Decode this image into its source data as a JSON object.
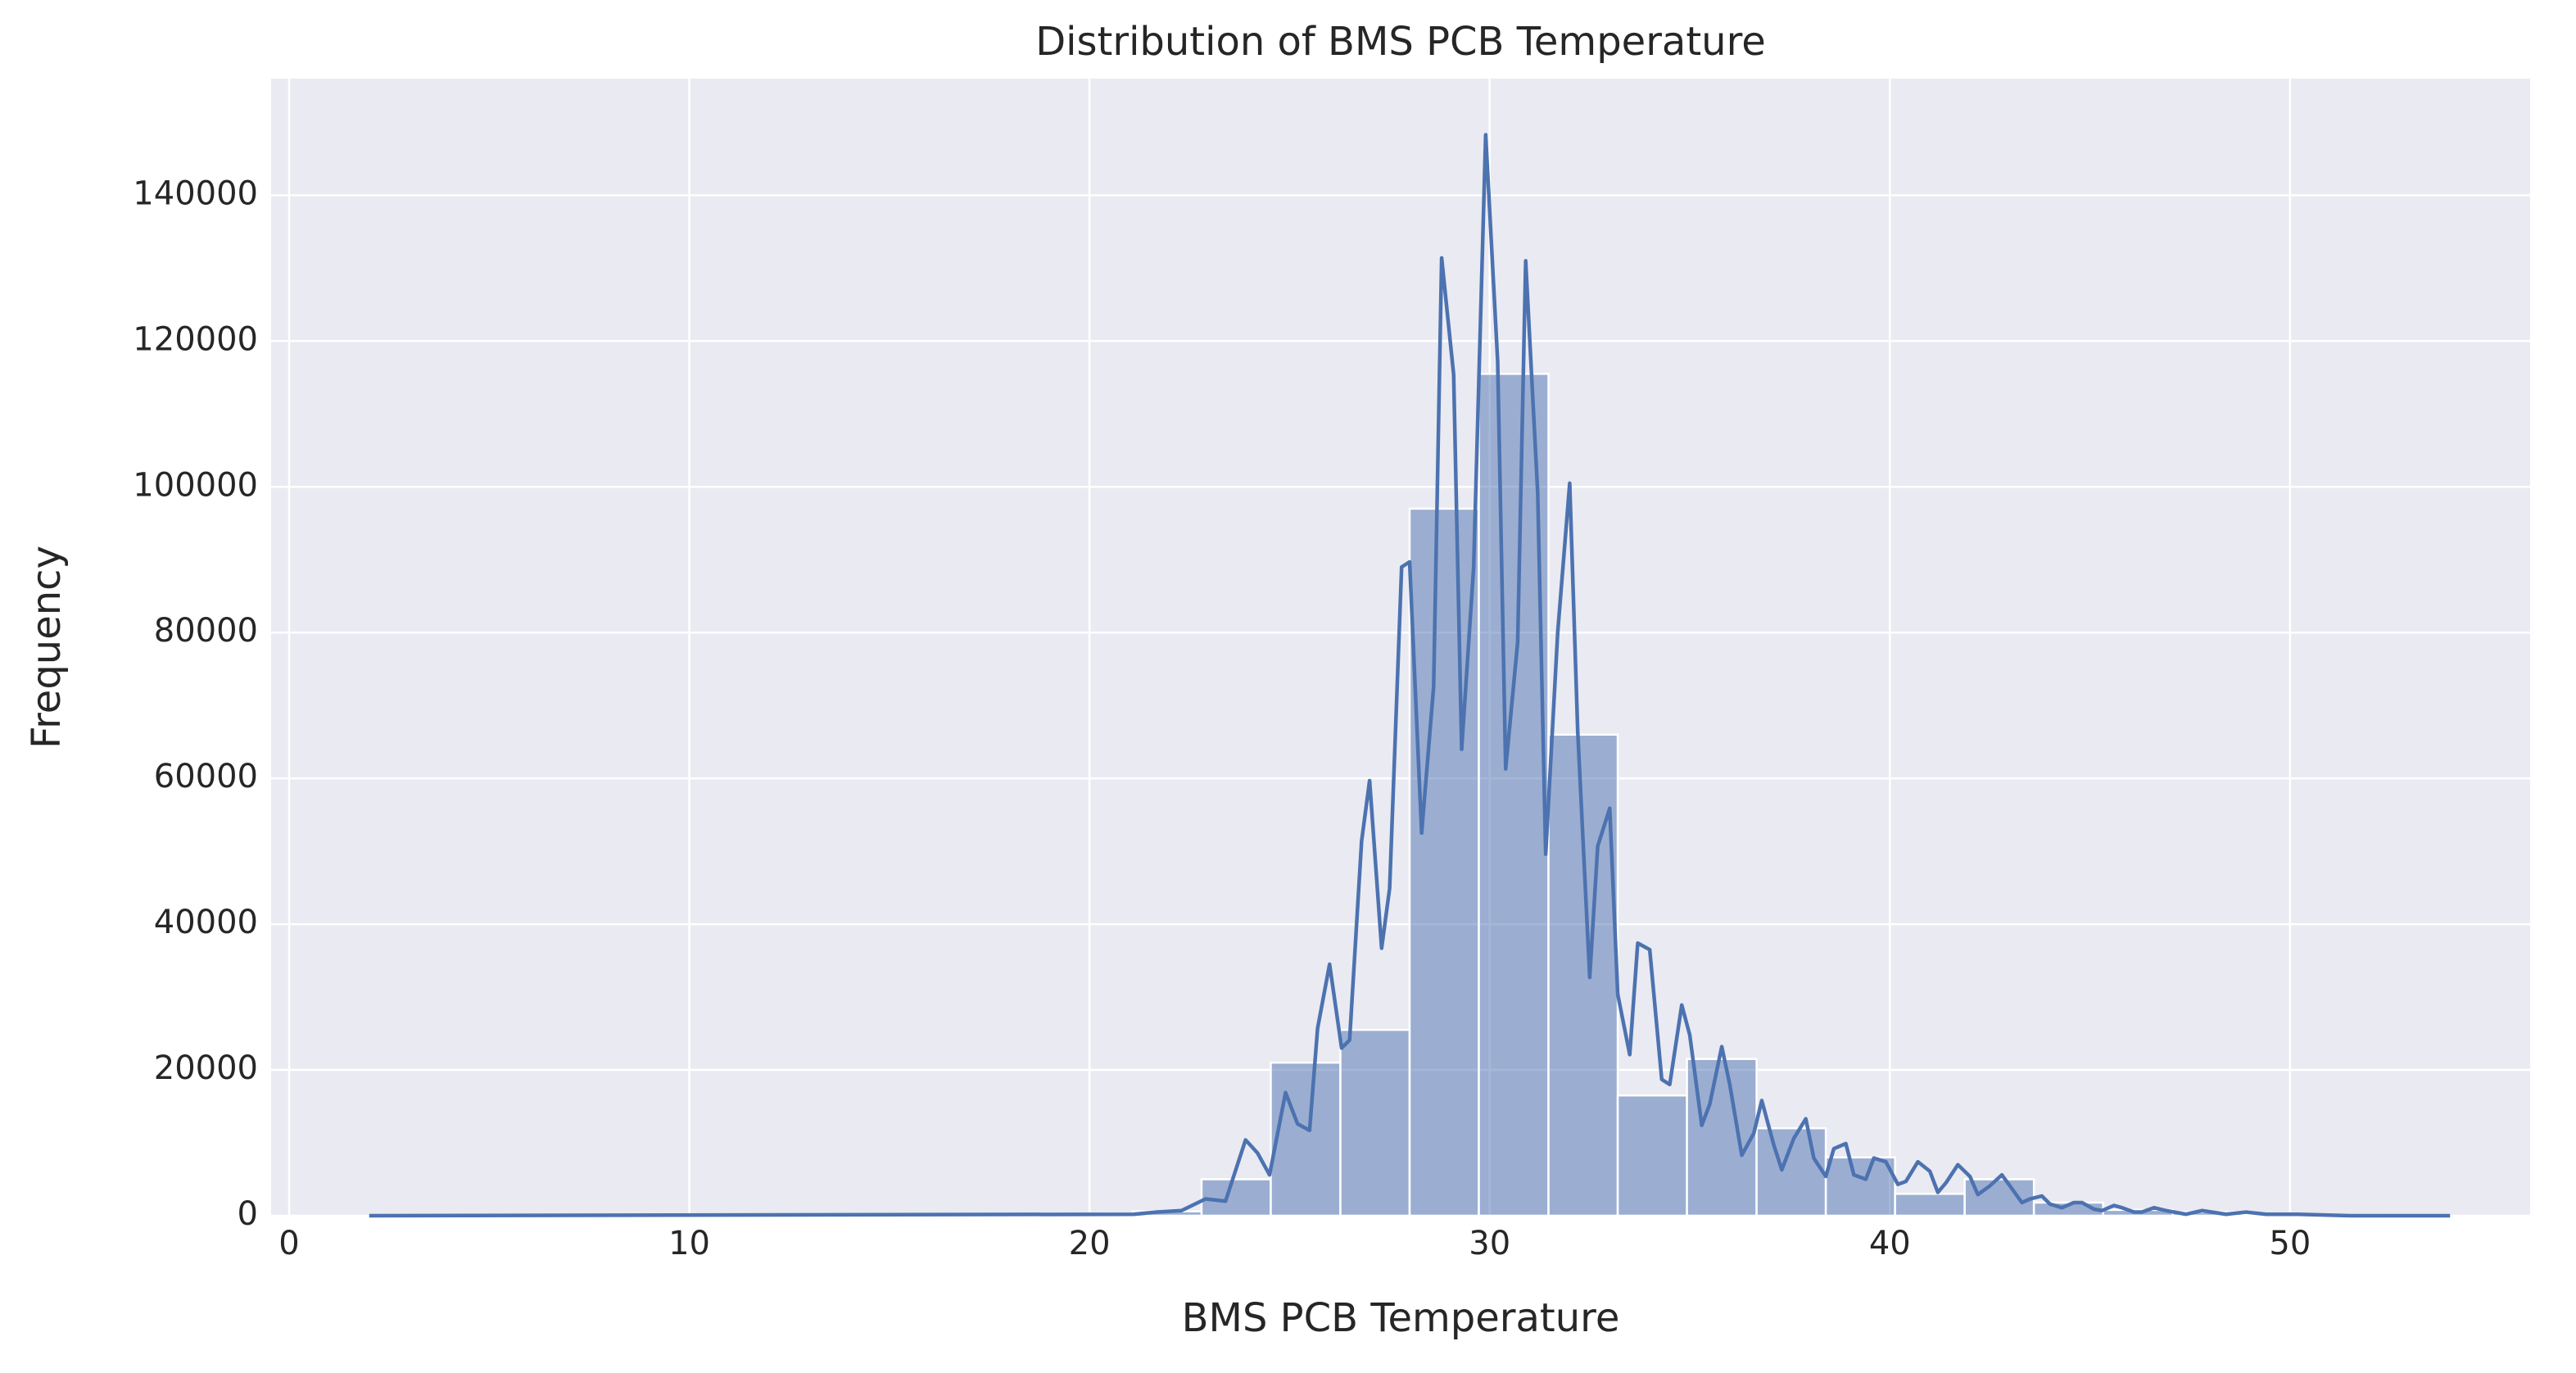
{
  "chart_data": {
    "type": "histogram",
    "title": "Distribution of BMS PCB Temperature",
    "xlabel": "BMS PCB Temperature",
    "ylabel": "Frequency",
    "bins": [
      2,
      3.73,
      5.47,
      7.2,
      8.93,
      10.67,
      12.4,
      14.13,
      15.87,
      17.6,
      19.33,
      21.07,
      22.8,
      24.53,
      26.27,
      28,
      29.73,
      31.47,
      33.2,
      34.93,
      36.67,
      38.4,
      40.13,
      41.87,
      43.6,
      45.33,
      47.07,
      48.8,
      50.53,
      52.27,
      54
    ],
    "counts": [
      100,
      0,
      0,
      0,
      0,
      0,
      0,
      0,
      0,
      0,
      100,
      600,
      5000,
      21000,
      25500,
      97000,
      115500,
      66000,
      16500,
      21500,
      12000,
      8000,
      3000,
      5000,
      1800,
      800,
      500,
      200,
      100,
      50
    ],
    "color": "#4c72b0",
    "line": {
      "x": [
        2.0,
        21.1,
        21.7,
        22.3,
        22.9,
        23.4,
        23.9,
        24.2,
        24.5,
        24.9,
        25.2,
        25.5,
        25.7,
        26.0,
        26.3,
        26.5,
        26.8,
        27.0,
        27.3,
        27.5,
        27.8,
        28.0,
        28.3,
        28.6,
        28.8,
        29.1,
        29.3,
        29.6,
        29.9,
        30.2,
        30.4,
        30.7,
        30.9,
        31.2,
        31.4,
        31.7,
        32.0,
        32.2,
        32.5,
        32.7,
        33.0,
        33.2,
        33.5,
        33.7,
        34.0,
        34.3,
        34.5,
        34.8,
        35.0,
        35.3,
        35.5,
        35.8,
        36.0,
        36.3,
        36.6,
        36.8,
        37.1,
        37.3,
        37.6,
        37.9,
        38.1,
        38.4,
        38.6,
        38.9,
        39.1,
        39.4,
        39.6,
        39.9,
        40.2,
        40.4,
        40.7,
        41.0,
        41.2,
        41.4,
        41.7,
        42.0,
        42.2,
        42.5,
        42.8,
        43.0,
        43.3,
        43.5,
        43.8,
        44.0,
        44.3,
        44.6,
        44.8,
        45.1,
        45.3,
        45.6,
        45.8,
        46.1,
        46.3,
        46.6,
        46.9,
        47.4,
        47.8,
        48.4,
        48.9,
        49.4,
        50.2,
        51.5,
        54.0
      ],
      "values": [
        0,
        200,
        500,
        700,
        2300,
        2000,
        10400,
        8600,
        5600,
        16900,
        12600,
        11700,
        25700,
        34500,
        23000,
        24100,
        51400,
        59700,
        36700,
        44900,
        89000,
        89700,
        52500,
        72600,
        131400,
        115400,
        64000,
        89000,
        148300,
        117200,
        61300,
        78700,
        131000,
        99200,
        49600,
        80000,
        100500,
        66500,
        32700,
        50700,
        55900,
        30400,
        22100,
        37400,
        36500,
        18700,
        18000,
        28900,
        24800,
        12400,
        15300,
        23200,
        18000,
        8300,
        11300,
        15800,
        9700,
        6300,
        10600,
        13300,
        7900,
        5400,
        9200,
        9900,
        5600,
        5000,
        7900,
        7400,
        4300,
        4700,
        7400,
        6100,
        3200,
        4500,
        7000,
        5400,
        2900,
        4100,
        5600,
        4100,
        1800,
        2300,
        2700,
        1600,
        1100,
        1800,
        1800,
        900,
        700,
        1400,
        1100,
        500,
        500,
        1100,
        700,
        200,
        700,
        200,
        500,
        200,
        200,
        0,
        0
      ]
    },
    "xlim": [
      -0.45,
      56.0
    ],
    "ylim": [
      0,
      156000
    ],
    "xticks": [
      0,
      10,
      20,
      30,
      40,
      50
    ],
    "yticks": [
      0,
      20000,
      40000,
      60000,
      80000,
      100000,
      120000,
      140000
    ],
    "grid": true
  }
}
